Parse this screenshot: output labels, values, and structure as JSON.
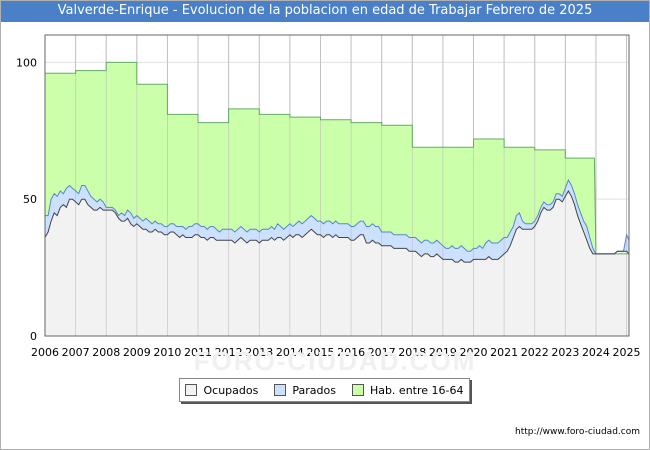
{
  "title": "Valverde-Enrique - Evolucion de la poblacion en edad de Trabajar Febrero de 2025",
  "footer": "http://www.foro-ciudad.com",
  "watermark": "FORO-CIUDAD.COM",
  "colors": {
    "title_bg": "#4a80c8",
    "hab": "#ccffaa",
    "hab_line": "#66aa66",
    "parados": "#cce0ff",
    "parados_line": "#5588cc",
    "ocupados": "#f2f2f2",
    "ocupados_line": "#444444"
  },
  "chart_data": {
    "type": "area",
    "title": "Valverde-Enrique - Evolucion de la poblacion en edad de Trabajar Febrero de 2025",
    "xlabel": "",
    "ylabel": "",
    "xlim": [
      2006,
      2025.08
    ],
    "ylim": [
      0,
      110
    ],
    "grid": true,
    "x_ticks": [
      "2006",
      "2007",
      "2008",
      "2009",
      "2010",
      "2011",
      "2012",
      "2013",
      "2014",
      "2015",
      "2016",
      "2017",
      "2018",
      "2019",
      "2020",
      "2021",
      "2022",
      "2023",
      "2024",
      "2025"
    ],
    "y_ticks": [
      0,
      50,
      100
    ],
    "legend": [
      "Ocupados",
      "Parados",
      "Hab. entre 16-64"
    ],
    "legend_position": "bottom",
    "series": [
      {
        "name": "Hab. entre 16-64",
        "x": [
          2006,
          2007,
          2007,
          2008,
          2008,
          2009,
          2009,
          2010,
          2010,
          2011,
          2011,
          2012,
          2012,
          2013,
          2013,
          2014,
          2014,
          2015,
          2015,
          2016,
          2016,
          2017,
          2017,
          2018,
          2018,
          2019,
          2019,
          2020,
          2020,
          2021,
          2021,
          2022,
          2022,
          2023,
          2023,
          2023.95,
          2024,
          2025.08
        ],
        "values": [
          96,
          96,
          97,
          97,
          100,
          100,
          92,
          92,
          81,
          81,
          78,
          78,
          83,
          83,
          81,
          81,
          80,
          80,
          79,
          79,
          78,
          78,
          77,
          77,
          69,
          69,
          69,
          69,
          72,
          72,
          69,
          69,
          68,
          68,
          65,
          65,
          30,
          30
        ]
      },
      {
        "name": "Parados",
        "x": [
          2006,
          2006.1,
          2006.2,
          2006.3,
          2006.4,
          2006.5,
          2006.6,
          2006.7,
          2006.8,
          2006.9,
          2007,
          2007.1,
          2007.2,
          2007.3,
          2007.4,
          2007.5,
          2007.6,
          2007.7,
          2007.8,
          2007.9,
          2008,
          2008.1,
          2008.2,
          2008.3,
          2008.4,
          2008.5,
          2008.6,
          2008.7,
          2008.8,
          2008.9,
          2009,
          2009.1,
          2009.2,
          2009.3,
          2009.4,
          2009.5,
          2009.6,
          2009.7,
          2009.8,
          2009.9,
          2010,
          2010.1,
          2010.2,
          2010.3,
          2010.4,
          2010.5,
          2010.6,
          2010.7,
          2010.8,
          2010.9,
          2011,
          2011.1,
          2011.2,
          2011.3,
          2011.4,
          2011.5,
          2011.6,
          2011.7,
          2011.8,
          2011.9,
          2012,
          2012.1,
          2012.2,
          2012.3,
          2012.4,
          2012.5,
          2012.6,
          2012.7,
          2012.8,
          2012.9,
          2013,
          2013.1,
          2013.2,
          2013.3,
          2013.4,
          2013.5,
          2013.6,
          2013.7,
          2013.8,
          2013.9,
          2014,
          2014.1,
          2014.2,
          2014.3,
          2014.4,
          2014.5,
          2014.6,
          2014.7,
          2014.8,
          2014.9,
          2015,
          2015.1,
          2015.2,
          2015.3,
          2015.4,
          2015.5,
          2015.6,
          2015.7,
          2015.8,
          2015.9,
          2016,
          2016.1,
          2016.2,
          2016.3,
          2016.4,
          2016.5,
          2016.6,
          2016.7,
          2016.8,
          2016.9,
          2017,
          2017.1,
          2017.2,
          2017.3,
          2017.4,
          2017.5,
          2017.6,
          2017.7,
          2017.8,
          2017.9,
          2018,
          2018.1,
          2018.2,
          2018.3,
          2018.4,
          2018.5,
          2018.6,
          2018.7,
          2018.8,
          2018.9,
          2019,
          2019.1,
          2019.2,
          2019.3,
          2019.4,
          2019.5,
          2019.6,
          2019.7,
          2019.8,
          2019.9,
          2020,
          2020.1,
          2020.2,
          2020.3,
          2020.4,
          2020.5,
          2020.6,
          2020.7,
          2020.8,
          2020.9,
          2021,
          2021.1,
          2021.2,
          2021.3,
          2021.4,
          2021.5,
          2021.6,
          2021.7,
          2021.8,
          2021.9,
          2022,
          2022.1,
          2022.2,
          2022.3,
          2022.4,
          2022.5,
          2022.6,
          2022.7,
          2022.8,
          2022.9,
          2023,
          2023.1,
          2023.2,
          2023.3,
          2023.4,
          2023.5,
          2023.6,
          2023.7,
          2023.8,
          2023.9,
          2024,
          2024.1,
          2024.2,
          2024.3,
          2024.4,
          2024.5,
          2024.6,
          2024.7,
          2024.8,
          2024.9,
          2025,
          2025.08
        ],
        "values": [
          44,
          44,
          50,
          52,
          51,
          53,
          52,
          54,
          55,
          54,
          53,
          52,
          55,
          55,
          53,
          51,
          50,
          49,
          50,
          49,
          47,
          47,
          47,
          46,
          44,
          45,
          44,
          46,
          45,
          43,
          44,
          43,
          42,
          43,
          42,
          41,
          42,
          41,
          41,
          40,
          40,
          41,
          41,
          40,
          40,
          40,
          39,
          40,
          40,
          41,
          41,
          40,
          40,
          39,
          40,
          40,
          39,
          38,
          39,
          39,
          39,
          39,
          38,
          39,
          40,
          39,
          38,
          39,
          39,
          39,
          38,
          39,
          39,
          39,
          40,
          39,
          41,
          40,
          39,
          40,
          41,
          40,
          41,
          42,
          41,
          42,
          43,
          44,
          43,
          42,
          42,
          41,
          42,
          42,
          41,
          42,
          41,
          41,
          41,
          41,
          40,
          40,
          41,
          42,
          42,
          40,
          40,
          41,
          40,
          40,
          38,
          38,
          38,
          38,
          37,
          37,
          37,
          37,
          37,
          36,
          36,
          36,
          35,
          34,
          35,
          35,
          34,
          34,
          35,
          34,
          33,
          32,
          32,
          33,
          32,
          32,
          33,
          32,
          31,
          31,
          32,
          32,
          33,
          32,
          34,
          35,
          34,
          34,
          34,
          35,
          36,
          36,
          38,
          40,
          44,
          45,
          42,
          41,
          41,
          41,
          42,
          44,
          47,
          49,
          48,
          48,
          49,
          52,
          52,
          51,
          54,
          57,
          55,
          52,
          48,
          45,
          42,
          40,
          36,
          32,
          30,
          30,
          30,
          30,
          30,
          30,
          30,
          31,
          31,
          31,
          37,
          35
        ],
        "note": "cumulative top of Parados band (Ocupados + Parados)"
      },
      {
        "name": "Ocupados",
        "x": [
          2006,
          2006.1,
          2006.2,
          2006.3,
          2006.4,
          2006.5,
          2006.6,
          2006.7,
          2006.8,
          2006.9,
          2007,
          2007.1,
          2007.2,
          2007.3,
          2007.4,
          2007.5,
          2007.6,
          2007.7,
          2007.8,
          2007.9,
          2008,
          2008.1,
          2008.2,
          2008.3,
          2008.4,
          2008.5,
          2008.6,
          2008.7,
          2008.8,
          2008.9,
          2009,
          2009.1,
          2009.2,
          2009.3,
          2009.4,
          2009.5,
          2009.6,
          2009.7,
          2009.8,
          2009.9,
          2010,
          2010.1,
          2010.2,
          2010.3,
          2010.4,
          2010.5,
          2010.6,
          2010.7,
          2010.8,
          2010.9,
          2011,
          2011.1,
          2011.2,
          2011.3,
          2011.4,
          2011.5,
          2011.6,
          2011.7,
          2011.8,
          2011.9,
          2012,
          2012.1,
          2012.2,
          2012.3,
          2012.4,
          2012.5,
          2012.6,
          2012.7,
          2012.8,
          2012.9,
          2013,
          2013.1,
          2013.2,
          2013.3,
          2013.4,
          2013.5,
          2013.6,
          2013.7,
          2013.8,
          2013.9,
          2014,
          2014.1,
          2014.2,
          2014.3,
          2014.4,
          2014.5,
          2014.6,
          2014.7,
          2014.8,
          2014.9,
          2015,
          2015.1,
          2015.2,
          2015.3,
          2015.4,
          2015.5,
          2015.6,
          2015.7,
          2015.8,
          2015.9,
          2016,
          2016.1,
          2016.2,
          2016.3,
          2016.4,
          2016.5,
          2016.6,
          2016.7,
          2016.8,
          2016.9,
          2017,
          2017.1,
          2017.2,
          2017.3,
          2017.4,
          2017.5,
          2017.6,
          2017.7,
          2017.8,
          2017.9,
          2018,
          2018.1,
          2018.2,
          2018.3,
          2018.4,
          2018.5,
          2018.6,
          2018.7,
          2018.8,
          2018.9,
          2019,
          2019.1,
          2019.2,
          2019.3,
          2019.4,
          2019.5,
          2019.6,
          2019.7,
          2019.8,
          2019.9,
          2020,
          2020.1,
          2020.2,
          2020.3,
          2020.4,
          2020.5,
          2020.6,
          2020.7,
          2020.8,
          2020.9,
          2021,
          2021.1,
          2021.2,
          2021.3,
          2021.4,
          2021.5,
          2021.6,
          2021.7,
          2021.8,
          2021.9,
          2022,
          2022.1,
          2022.2,
          2022.3,
          2022.4,
          2022.5,
          2022.6,
          2022.7,
          2022.8,
          2022.9,
          2023,
          2023.1,
          2023.2,
          2023.3,
          2023.4,
          2023.5,
          2023.6,
          2023.7,
          2023.8,
          2023.9,
          2024,
          2024.1,
          2024.2,
          2024.3,
          2024.4,
          2024.5,
          2024.6,
          2024.7,
          2024.8,
          2024.9,
          2025,
          2025.08
        ],
        "values": [
          36,
          38,
          42,
          45,
          44,
          47,
          48,
          47,
          50,
          50,
          49,
          48,
          50,
          50,
          48,
          47,
          46,
          46,
          47,
          46,
          46,
          46,
          46,
          45,
          43,
          42,
          42,
          43,
          41,
          40,
          41,
          40,
          39,
          39,
          38,
          38,
          39,
          38,
          38,
          37,
          37,
          38,
          38,
          37,
          36,
          37,
          36,
          36,
          36,
          37,
          37,
          36,
          36,
          35,
          36,
          36,
          35,
          35,
          35,
          35,
          35,
          35,
          34,
          35,
          36,
          35,
          34,
          35,
          35,
          35,
          34,
          35,
          35,
          35,
          36,
          35,
          36,
          36,
          35,
          36,
          37,
          36,
          37,
          37,
          36,
          37,
          38,
          39,
          38,
          37,
          37,
          36,
          37,
          37,
          36,
          37,
          36,
          36,
          36,
          36,
          35,
          35,
          36,
          37,
          37,
          34,
          34,
          35,
          34,
          34,
          33,
          33,
          33,
          33,
          32,
          32,
          32,
          32,
          32,
          31,
          31,
          31,
          30,
          29,
          30,
          30,
          29,
          29,
          30,
          29,
          28,
          28,
          28,
          28,
          27,
          27,
          28,
          27,
          27,
          27,
          28,
          28,
          28,
          28,
          28,
          29,
          28,
          28,
          28,
          29,
          30,
          31,
          33,
          36,
          39,
          40,
          39,
          39,
          39,
          39,
          40,
          42,
          45,
          47,
          46,
          46,
          47,
          50,
          50,
          49,
          51,
          53,
          51,
          48,
          44,
          41,
          38,
          35,
          32,
          30,
          30,
          30,
          30,
          30,
          30,
          30,
          30,
          31,
          31,
          31,
          31,
          30
        ]
      }
    ]
  }
}
